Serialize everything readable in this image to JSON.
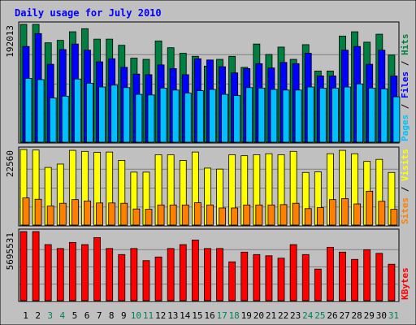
{
  "chart_data": {
    "type": "bar",
    "title": "Daily usage for July 2010",
    "categories": [
      "1",
      "2",
      "3",
      "4",
      "5",
      "6",
      "7",
      "8",
      "9",
      "10",
      "11",
      "12",
      "13",
      "14",
      "15",
      "16",
      "17",
      "18",
      "19",
      "20",
      "21",
      "22",
      "23",
      "24",
      "25",
      "26",
      "27",
      "28",
      "29",
      "30",
      "31"
    ],
    "weekend_days": [
      "3",
      "4",
      "10",
      "11",
      "17",
      "18",
      "24",
      "25",
      "31"
    ],
    "panels": [
      {
        "id": "hits-panel",
        "max_label": "192013",
        "ylim": [
          0,
          192013
        ],
        "labels": [
          "Pages",
          "Files",
          "Hits"
        ],
        "series": [
          {
            "name": "Hits",
            "color": "#008040",
            "values": [
              192013,
              192013,
              162000,
              166000,
              180000,
              185000,
              168000,
              168000,
              158000,
              137000,
              135000,
              165000,
              154000,
              145000,
              140000,
              124000,
              135000,
              140000,
              122000,
              160000,
              143000,
              155000,
              135000,
              159000,
              116000,
              116000,
              173000,
              180000,
              163000,
              176000,
              142000
            ]
          },
          {
            "name": "Files",
            "color": "#0000ff",
            "values": [
              156000,
              177000,
              127000,
              151000,
              160000,
              150000,
              131000,
              136000,
              122000,
              111000,
              110000,
              126000,
              120000,
              110000,
              136000,
              134000,
              123000,
              113000,
              120000,
              128000,
              121000,
              130000,
              128000,
              145000,
              108000,
              108000,
              150000,
              156000,
              127000,
              150000,
              108000
            ]
          },
          {
            "name": "Pages",
            "color": "#00c0ff",
            "values": [
              104000,
              102000,
              72000,
              75000,
              103000,
              96000,
              90000,
              93000,
              89000,
              78000,
              77000,
              88000,
              85000,
              80000,
              84000,
              86000,
              78000,
              76000,
              89000,
              88000,
              86000,
              85000,
              85000,
              90000,
              88000,
              88000,
              90000,
              95000,
              88000,
              87000,
              74000
            ]
          }
        ]
      },
      {
        "id": "visits-panel",
        "max_label": "22560",
        "ylim": [
          0,
          22560
        ],
        "labels": [
          "Sites",
          "Visits"
        ],
        "series": [
          {
            "name": "Visits",
            "color": "#ffff00",
            "values": [
              22560,
              22400,
              17200,
              18200,
              22300,
              22000,
              21700,
              21800,
              19300,
              15800,
              15800,
              21000,
              21000,
              19300,
              21800,
              17000,
              16700,
              21000,
              20700,
              21000,
              21300,
              21000,
              22000,
              15700,
              15900,
              21300,
              22300,
              21300,
              19000,
              19600,
              15700
            ]
          },
          {
            "name": "Sites",
            "color": "#ff8000",
            "values": [
              8100,
              7700,
              5700,
              6500,
              7600,
              7200,
              6600,
              6600,
              6500,
              4800,
              4700,
              6000,
              6000,
              6000,
              6700,
              6000,
              5100,
              5100,
              6000,
              6000,
              6000,
              6100,
              6500,
              4900,
              5200,
              7600,
              7900,
              6300,
              10100,
              7100,
              4700
            ]
          }
        ]
      },
      {
        "id": "kbytes-panel",
        "max_label": "5695531",
        "ylim": [
          0,
          5695531
        ],
        "labels": [
          "KBytes"
        ],
        "series": [
          {
            "name": "KBytes",
            "color": "#ff0000",
            "values": [
              5695531,
              5695531,
              4620000,
              4300000,
              4800000,
              4620000,
              5200000,
              4300000,
              3800000,
              4300000,
              3300000,
              3600000,
              4300000,
              4620000,
              5000000,
              4300000,
              4300000,
              3200000,
              4000000,
              3800000,
              3700000,
              3500000,
              4620000,
              3800000,
              2600000,
              4400000,
              4000000,
              3400000,
              4200000,
              3900000,
              3000000
            ]
          }
        ]
      }
    ],
    "colors": {
      "background": "#c0c0c0",
      "plot": "#c0c0c0",
      "title": "#0000ff",
      "weekday_label": "#000000",
      "weekend_label": "#00805c",
      "grid": "#808080"
    }
  }
}
